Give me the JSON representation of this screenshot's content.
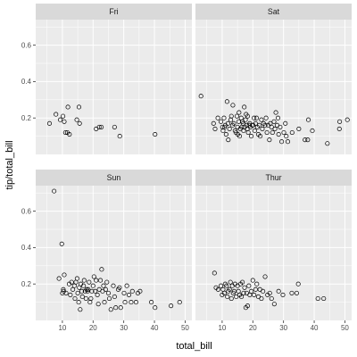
{
  "chart_data": {
    "type": "scatter",
    "xlabel": "total_bill",
    "ylabel": "tip/total_bill",
    "xlim": [
      1.3,
      52.2
    ],
    "ylim": [
      0.0,
      0.74
    ],
    "x_ticks": [
      10,
      20,
      30,
      40,
      50
    ],
    "y_ticks": [
      0.2,
      0.4,
      0.6
    ],
    "y_tick_labels": [
      "0.2",
      "0.4",
      "0.6"
    ],
    "x_tick_labels": [
      "10",
      "20",
      "30",
      "40",
      "50"
    ],
    "grid": true,
    "facet_layout": "2x2",
    "marker": "open-circle",
    "colors": {
      "panel_background": "#ebebeb",
      "grid_major": "#ffffff",
      "strip_background": "#d9d9d9",
      "point_stroke": "#000000"
    },
    "panels": [
      {
        "label": "Fri",
        "points": [
          [
            5.8,
            0.17
          ],
          [
            7.9,
            0.22
          ],
          [
            9.3,
            0.19
          ],
          [
            10.2,
            0.21
          ],
          [
            10.6,
            0.18
          ],
          [
            11.0,
            0.12
          ],
          [
            11.6,
            0.12
          ],
          [
            11.8,
            0.26
          ],
          [
            12.3,
            0.11
          ],
          [
            14.7,
            0.19
          ],
          [
            15.4,
            0.26
          ],
          [
            15.6,
            0.17
          ],
          [
            21.0,
            0.14
          ],
          [
            22.0,
            0.15
          ],
          [
            22.7,
            0.15
          ],
          [
            27.0,
            0.15
          ],
          [
            28.7,
            0.1
          ],
          [
            40.2,
            0.11
          ]
        ]
      },
      {
        "label": "Sat",
        "points": [
          [
            3.1,
            0.32
          ],
          [
            7.2,
            0.17
          ],
          [
            7.7,
            0.14
          ],
          [
            8.6,
            0.2
          ],
          [
            9.6,
            0.18
          ],
          [
            10.1,
            0.15
          ],
          [
            10.3,
            0.13
          ],
          [
            10.6,
            0.2
          ],
          [
            10.8,
            0.15
          ],
          [
            11.0,
            0.16
          ],
          [
            11.3,
            0.11
          ],
          [
            11.6,
            0.29
          ],
          [
            11.9,
            0.17
          ],
          [
            12.0,
            0.08
          ],
          [
            12.4,
            0.14
          ],
          [
            12.8,
            0.19
          ],
          [
            13.0,
            0.21
          ],
          [
            13.4,
            0.16
          ],
          [
            13.5,
            0.27
          ],
          [
            13.8,
            0.17
          ],
          [
            14.2,
            0.13
          ],
          [
            14.5,
            0.12
          ],
          [
            14.8,
            0.21
          ],
          [
            15.0,
            0.15
          ],
          [
            15.1,
            0.11
          ],
          [
            15.4,
            0.18
          ],
          [
            15.5,
            0.23
          ],
          [
            15.7,
            0.1
          ],
          [
            15.9,
            0.14
          ],
          [
            16.2,
            0.2
          ],
          [
            16.4,
            0.15
          ],
          [
            16.6,
            0.18
          ],
          [
            16.8,
            0.17
          ],
          [
            17.0,
            0.13
          ],
          [
            17.2,
            0.26
          ],
          [
            17.3,
            0.15
          ],
          [
            17.6,
            0.19
          ],
          [
            17.8,
            0.22
          ],
          [
            18.0,
            0.16
          ],
          [
            18.2,
            0.14
          ],
          [
            18.3,
            0.21
          ],
          [
            18.5,
            0.12
          ],
          [
            18.8,
            0.16
          ],
          [
            19.0,
            0.17
          ],
          [
            19.2,
            0.15
          ],
          [
            19.5,
            0.1
          ],
          [
            19.8,
            0.16
          ],
          [
            20.1,
            0.16
          ],
          [
            20.4,
            0.2
          ],
          [
            20.6,
            0.13
          ],
          [
            20.9,
            0.17
          ],
          [
            21.2,
            0.2
          ],
          [
            21.5,
            0.15
          ],
          [
            21.8,
            0.11
          ],
          [
            22.1,
            0.16
          ],
          [
            22.4,
            0.1
          ],
          [
            22.8,
            0.19
          ],
          [
            23.1,
            0.14
          ],
          [
            23.5,
            0.17
          ],
          [
            24.0,
            0.16
          ],
          [
            24.3,
            0.2
          ],
          [
            24.6,
            0.12
          ],
          [
            25.0,
            0.16
          ],
          [
            25.4,
            0.08
          ],
          [
            25.7,
            0.17
          ],
          [
            26.1,
            0.15
          ],
          [
            26.4,
            0.12
          ],
          [
            26.9,
            0.18
          ],
          [
            27.2,
            0.14
          ],
          [
            27.5,
            0.23
          ],
          [
            27.9,
            0.16
          ],
          [
            28.2,
            0.2
          ],
          [
            28.4,
            0.11
          ],
          [
            28.9,
            0.15
          ],
          [
            29.4,
            0.07
          ],
          [
            30.1,
            0.12
          ],
          [
            30.6,
            0.17
          ],
          [
            30.9,
            0.1
          ],
          [
            31.4,
            0.07
          ],
          [
            32.8,
            0.12
          ],
          [
            35.0,
            0.14
          ],
          [
            37.0,
            0.08
          ],
          [
            37.9,
            0.08
          ],
          [
            38.1,
            0.19
          ],
          [
            39.4,
            0.13
          ],
          [
            44.3,
            0.06
          ],
          [
            48.2,
            0.14
          ],
          [
            48.3,
            0.18
          ],
          [
            50.8,
            0.19
          ]
        ]
      },
      {
        "label": "Sun",
        "points": [
          [
            7.3,
            0.71
          ],
          [
            8.9,
            0.23
          ],
          [
            9.8,
            0.42
          ],
          [
            10.0,
            0.15
          ],
          [
            10.3,
            0.17
          ],
          [
            10.4,
            0.16
          ],
          [
            10.6,
            0.25
          ],
          [
            11.2,
            0.15
          ],
          [
            12.2,
            0.2
          ],
          [
            12.6,
            0.14
          ],
          [
            13.0,
            0.21
          ],
          [
            13.4,
            0.17
          ],
          [
            13.9,
            0.19
          ],
          [
            14.1,
            0.12
          ],
          [
            14.4,
            0.21
          ],
          [
            14.8,
            0.23
          ],
          [
            15.0,
            0.15
          ],
          [
            15.3,
            0.1
          ],
          [
            15.5,
            0.18
          ],
          [
            15.8,
            0.06
          ],
          [
            16.0,
            0.2
          ],
          [
            16.3,
            0.16
          ],
          [
            16.5,
            0.13
          ],
          [
            16.9,
            0.19
          ],
          [
            17.1,
            0.22
          ],
          [
            17.4,
            0.16
          ],
          [
            17.7,
            0.12
          ],
          [
            17.9,
            0.17
          ],
          [
            18.2,
            0.16
          ],
          [
            18.4,
            0.17
          ],
          [
            18.7,
            0.21
          ],
          [
            19.0,
            0.1
          ],
          [
            19.3,
            0.12
          ],
          [
            19.6,
            0.16
          ],
          [
            20.0,
            0.19
          ],
          [
            20.3,
            0.24
          ],
          [
            20.7,
            0.16
          ],
          [
            21.0,
            0.22
          ],
          [
            21.4,
            0.14
          ],
          [
            21.7,
            0.09
          ],
          [
            22.0,
            0.17
          ],
          [
            22.4,
            0.22
          ],
          [
            22.8,
            0.28
          ],
          [
            23.1,
            0.16
          ],
          [
            23.4,
            0.19
          ],
          [
            23.7,
            0.1
          ],
          [
            24.1,
            0.17
          ],
          [
            24.5,
            0.21
          ],
          [
            25.0,
            0.15
          ],
          [
            25.3,
            0.12
          ],
          [
            25.8,
            0.06
          ],
          [
            26.6,
            0.19
          ],
          [
            27.0,
            0.13
          ],
          [
            27.4,
            0.07
          ],
          [
            28.2,
            0.17
          ],
          [
            28.6,
            0.18
          ],
          [
            29.0,
            0.07
          ],
          [
            30.1,
            0.15
          ],
          [
            30.4,
            0.1
          ],
          [
            31.0,
            0.19
          ],
          [
            31.7,
            0.14
          ],
          [
            32.4,
            0.1
          ],
          [
            32.8,
            0.16
          ],
          [
            34.0,
            0.1
          ],
          [
            34.6,
            0.15
          ],
          [
            35.3,
            0.16
          ],
          [
            39.0,
            0.1
          ],
          [
            40.2,
            0.07
          ],
          [
            45.4,
            0.08
          ],
          [
            48.2,
            0.1
          ]
        ]
      },
      {
        "label": "Thur",
        "points": [
          [
            7.5,
            0.26
          ],
          [
            8.0,
            0.18
          ],
          [
            8.7,
            0.17
          ],
          [
            9.6,
            0.19
          ],
          [
            10.0,
            0.14
          ],
          [
            10.3,
            0.17
          ],
          [
            10.7,
            0.15
          ],
          [
            11.0,
            0.2
          ],
          [
            11.4,
            0.19
          ],
          [
            11.7,
            0.13
          ],
          [
            12.0,
            0.16
          ],
          [
            12.4,
            0.17
          ],
          [
            12.7,
            0.21
          ],
          [
            13.0,
            0.12
          ],
          [
            13.3,
            0.19
          ],
          [
            13.6,
            0.15
          ],
          [
            13.9,
            0.16
          ],
          [
            14.2,
            0.2
          ],
          [
            14.6,
            0.13
          ],
          [
            15.0,
            0.19
          ],
          [
            15.3,
            0.16
          ],
          [
            15.7,
            0.14
          ],
          [
            16.0,
            0.2
          ],
          [
            16.3,
            0.13
          ],
          [
            16.6,
            0.21
          ],
          [
            17.0,
            0.15
          ],
          [
            17.3,
            0.18
          ],
          [
            17.7,
            0.07
          ],
          [
            18.0,
            0.15
          ],
          [
            18.3,
            0.08
          ],
          [
            18.7,
            0.19
          ],
          [
            19.0,
            0.14
          ],
          [
            19.5,
            0.16
          ],
          [
            20.0,
            0.22
          ],
          [
            20.4,
            0.14
          ],
          [
            20.9,
            0.17
          ],
          [
            21.3,
            0.2
          ],
          [
            21.8,
            0.13
          ],
          [
            22.3,
            0.17
          ],
          [
            22.8,
            0.12
          ],
          [
            23.3,
            0.16
          ],
          [
            24.0,
            0.24
          ],
          [
            24.8,
            0.14
          ],
          [
            25.5,
            0.15
          ],
          [
            26.1,
            0.12
          ],
          [
            27.0,
            0.09
          ],
          [
            28.4,
            0.16
          ],
          [
            29.8,
            0.14
          ],
          [
            32.7,
            0.15
          ],
          [
            34.3,
            0.15
          ],
          [
            34.8,
            0.2
          ],
          [
            41.2,
            0.12
          ],
          [
            43.1,
            0.12
          ]
        ]
      }
    ]
  }
}
